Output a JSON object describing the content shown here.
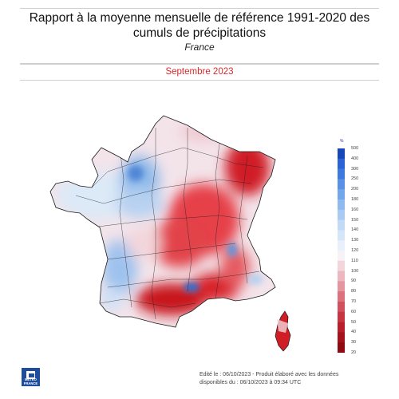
{
  "header": {
    "title": "Rapport à la moyenne mensuelle de référence 1991-2020 des cumuls de précipitations",
    "subtitle": "France",
    "period": "Septembre 2023"
  },
  "legend": {
    "unit": "%",
    "ticks": [
      "500",
      "400",
      "300",
      "250",
      "200",
      "180",
      "160",
      "150",
      "140",
      "130",
      "120",
      "110",
      "100",
      "90",
      "80",
      "70",
      "60",
      "50",
      "40",
      "30",
      "20"
    ]
  },
  "footer": {
    "logo_text": "METEO FRANCE",
    "line1": "Edité le : 06/10/2023 - Produit élaboré avec les données",
    "line2": "disponibles du : 06/10/2023 à 09:34 UTC"
  },
  "colors": {
    "title_accent": "#d8282a",
    "deficit": "#c9151c",
    "surplus": "#2f6fd0",
    "normal": "#f4f4f8",
    "logo": "#1f4d9e"
  }
}
